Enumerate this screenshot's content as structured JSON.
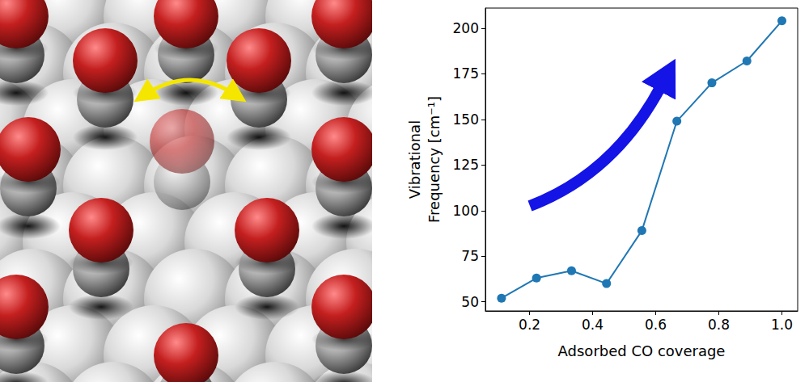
{
  "chart_data": {
    "type": "line",
    "x_label": "Adsorbed CO coverage",
    "y_label": "Vibrational\nFrequency [cm⁻¹]",
    "x": [
      0.111,
      0.222,
      0.333,
      0.444,
      0.556,
      0.667,
      0.778,
      0.889,
      1.0
    ],
    "values": [
      52,
      63,
      67,
      60,
      89,
      149,
      170,
      182,
      204
    ],
    "color": "#1f77b4",
    "marker": "circle",
    "xlim": [
      0.06,
      1.05
    ],
    "ylim": [
      45,
      211
    ],
    "xticks": [
      0.2,
      0.4,
      0.6,
      0.8,
      {
        "value": 1,
        "label": "1.0"
      }
    ],
    "yticks": [
      50,
      75,
      100,
      125,
      150,
      175,
      200
    ],
    "grid": false
  }
}
